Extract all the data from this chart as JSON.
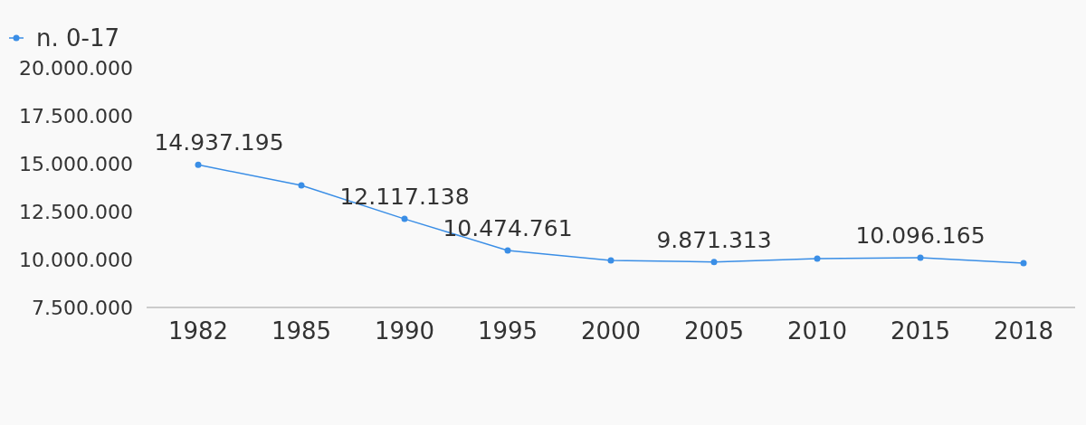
{
  "chart_data": {
    "type": "line",
    "categories": [
      "1982",
      "1985",
      "1990",
      "1995",
      "2000",
      "2005",
      "2010",
      "2015",
      "2018"
    ],
    "series": [
      {
        "name": "n. 0-17",
        "color": "#3a8ee6",
        "values": [
          14937195,
          13870000,
          12117138,
          10474761,
          9950000,
          9871313,
          10050000,
          10096165,
          9810000
        ],
        "value_labels": [
          "14.937.195",
          null,
          "12.117.138",
          "10.474.761",
          null,
          "9.871.313",
          null,
          "10.096.165",
          null
        ]
      }
    ],
    "ylim": [
      7500000,
      20000000
    ],
    "yticks": [
      {
        "value": 7500000,
        "label": "7.500.000"
      },
      {
        "value": 10000000,
        "label": "10.000.000"
      },
      {
        "value": 12500000,
        "label": "12.500.000"
      },
      {
        "value": 15000000,
        "label": "15.000.000"
      },
      {
        "value": 17500000,
        "label": "17.500.000"
      },
      {
        "value": 20000000,
        "label": "20.000.000"
      }
    ],
    "grid": false,
    "legend": "top left",
    "marker": "circle",
    "line_style": "solid"
  }
}
